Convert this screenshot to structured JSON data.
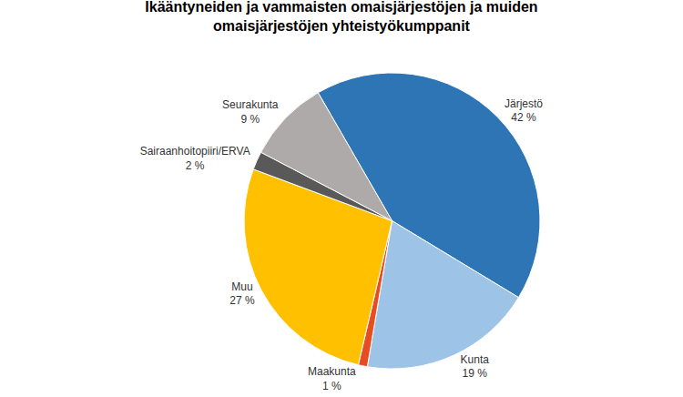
{
  "chart_data": {
    "type": "pie",
    "title": "Ikääntyneiden ja vammaisten omaisjärjestöjen ja muiden\nomaisjärjestöjen yhteistyökumppanit",
    "categories": [
      "Järjestö",
      "Kunta",
      "Maakunta",
      "Muu",
      "Sairaanhoitopiiri/ERVA",
      "Seurakunta"
    ],
    "values": [
      42,
      19,
      1,
      27,
      2,
      9
    ],
    "value_labels": [
      "42 %",
      "19 %",
      "1 %",
      "27 %",
      "2 %",
      "9 %"
    ],
    "colors": [
      "#2E75B6",
      "#9DC3E6",
      "#E84C22",
      "#FFC000",
      "#595959",
      "#AEAAAA"
    ],
    "data_labels": true
  }
}
